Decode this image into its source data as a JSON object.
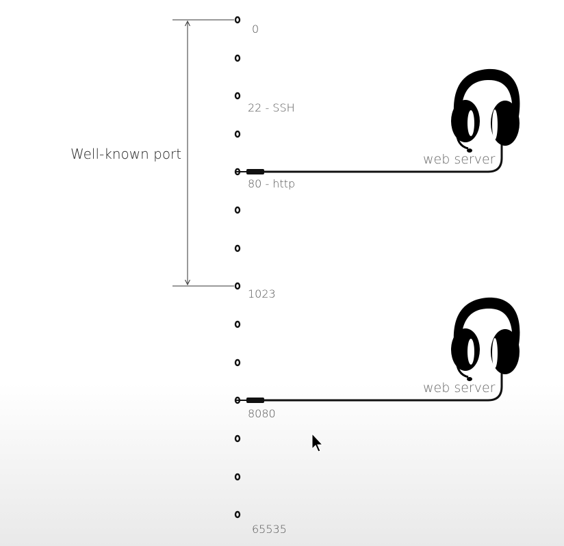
{
  "diagram": {
    "range_label": "Well-known port",
    "port_labels": [
      "0",
      "22 - SSH",
      "80 - http",
      "1023",
      "8080",
      "65535"
    ],
    "servers": [
      {
        "label": "web server",
        "port": "80 - http"
      },
      {
        "label": "web server",
        "port": "8080"
      }
    ]
  }
}
